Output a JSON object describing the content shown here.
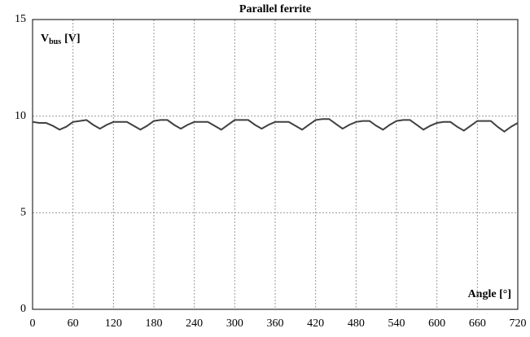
{
  "chart_data": {
    "type": "line",
    "title": "Parallel ferrite",
    "y_label": {
      "main": "V",
      "sub": "bus",
      "unit": "[V]"
    },
    "x_label": "Angle [°]",
    "x": [
      0,
      10,
      20,
      30,
      40,
      50,
      60,
      70,
      80,
      90,
      100,
      110,
      120,
      130,
      140,
      150,
      160,
      170,
      180,
      190,
      200,
      210,
      220,
      230,
      240,
      250,
      260,
      270,
      280,
      290,
      300,
      310,
      320,
      330,
      340,
      350,
      360,
      370,
      380,
      390,
      400,
      410,
      420,
      430,
      440,
      450,
      460,
      470,
      480,
      490,
      500,
      510,
      520,
      530,
      540,
      550,
      560,
      570,
      580,
      590,
      600,
      610,
      620,
      630,
      640,
      650,
      660,
      670,
      680,
      690,
      700,
      710,
      720
    ],
    "series": [
      {
        "name": "Vbus",
        "color": "#404040",
        "values": [
          9.7,
          9.65,
          9.65,
          9.5,
          9.3,
          9.45,
          9.7,
          9.75,
          9.8,
          9.55,
          9.35,
          9.55,
          9.7,
          9.7,
          9.7,
          9.5,
          9.3,
          9.5,
          9.75,
          9.8,
          9.8,
          9.55,
          9.35,
          9.55,
          9.7,
          9.7,
          9.7,
          9.5,
          9.3,
          9.55,
          9.8,
          9.8,
          9.8,
          9.55,
          9.35,
          9.55,
          9.7,
          9.7,
          9.7,
          9.5,
          9.3,
          9.55,
          9.8,
          9.85,
          9.85,
          9.6,
          9.35,
          9.55,
          9.7,
          9.75,
          9.75,
          9.5,
          9.3,
          9.55,
          9.75,
          9.8,
          9.8,
          9.55,
          9.3,
          9.5,
          9.65,
          9.7,
          9.7,
          9.45,
          9.25,
          9.5,
          9.75,
          9.75,
          9.75,
          9.45,
          9.2,
          9.45,
          9.65
        ]
      }
    ],
    "xlim": [
      0,
      720
    ],
    "xticks": [
      0,
      60,
      120,
      180,
      240,
      300,
      360,
      420,
      480,
      540,
      600,
      660,
      720
    ],
    "ylim": [
      0,
      15
    ],
    "yticks": [
      0,
      5,
      10,
      15
    ],
    "grid": true
  }
}
